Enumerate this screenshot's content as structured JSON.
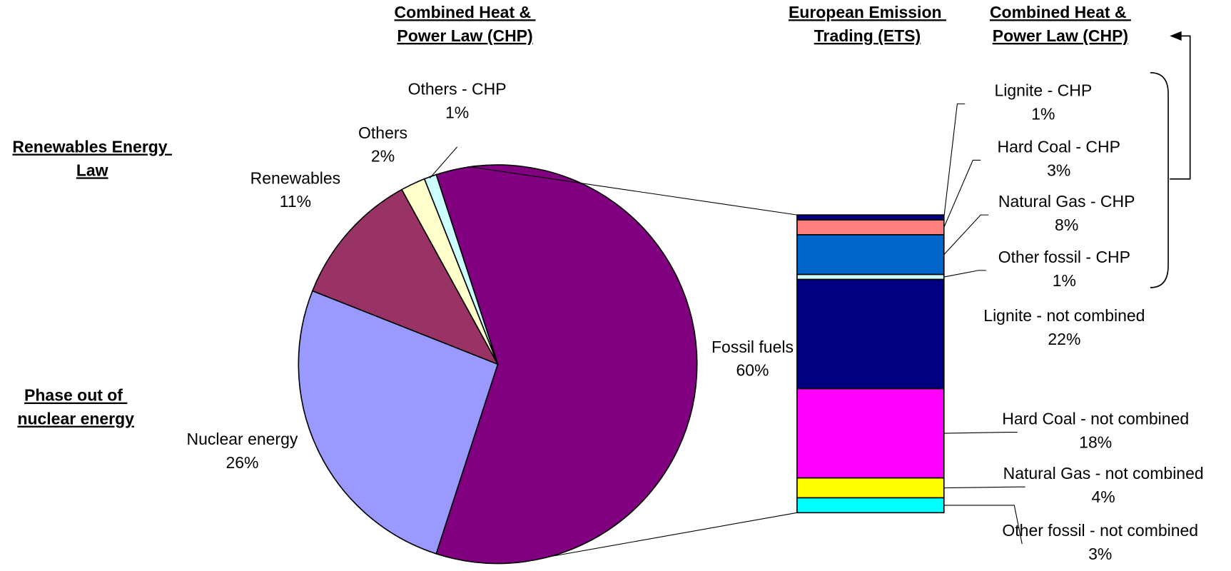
{
  "chart_data": {
    "type": "pie-of-bar",
    "pie": {
      "categories": [
        "Fossil fuels",
        "Nuclear energy",
        "Renewables",
        "Others",
        "Others - CHP"
      ],
      "values": [
        60,
        26,
        11,
        2,
        1
      ],
      "value_labels": [
        "60%",
        "26%",
        "11%",
        "2%",
        "1%"
      ],
      "colors": [
        "#800080",
        "#9999ff",
        "#993366",
        "#ffffcc",
        "#ccffff"
      ]
    },
    "bar": {
      "categories": [
        "Lignite - CHP",
        "Hard Coal - CHP",
        "Natural Gas - CHP",
        "Other fossil - CHP",
        "Lignite - not combined",
        "Hard Coal - not combined",
        "Natural Gas - not combined",
        "Other fossil - not combined"
      ],
      "values": [
        1,
        3,
        8,
        1,
        22,
        18,
        4,
        3
      ],
      "value_labels": [
        "1%",
        "3%",
        "8%",
        "1%",
        "22%",
        "18%",
        "4%",
        "3%"
      ],
      "colors": [
        "#000080",
        "#ff8080",
        "#0066cc",
        "#ccffff",
        "#000080",
        "#ff00ff",
        "#ffff00",
        "#00ffff"
      ]
    },
    "annotations": [
      [
        "Combined Heat & ",
        "Power Law (CHP)"
      ],
      [
        "European Emission ",
        "Trading (ETS)"
      ],
      [
        "Combined Heat & ",
        "Power Law (CHP)"
      ],
      [
        "Renewables Energy ",
        "Law"
      ],
      [
        "Phase out of ",
        "nuclear energy"
      ]
    ]
  }
}
